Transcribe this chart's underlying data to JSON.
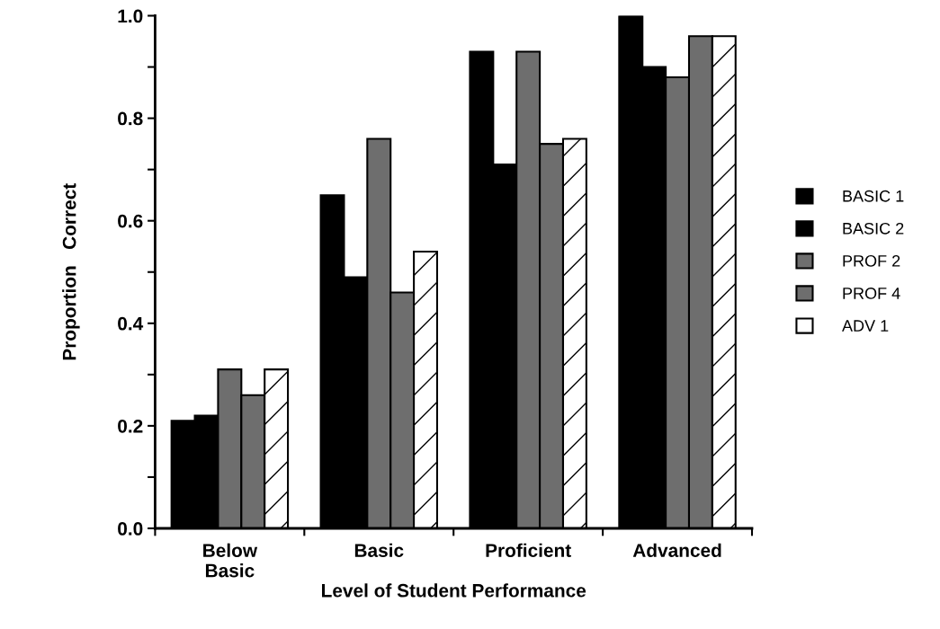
{
  "chart_data": {
    "type": "bar",
    "xlabel": "Level of Student Performance",
    "ylabel": "Proportion   Correct",
    "categories": [
      "Below\nBasic",
      "Basic",
      "Proficient",
      "Advanced"
    ],
    "series": [
      {
        "name": "BASIC 1",
        "color": "#000000",
        "values": [
          0.21,
          0.65,
          0.93,
          1.0
        ]
      },
      {
        "name": "BASIC 2",
        "color": "#000000",
        "values": [
          0.22,
          0.49,
          0.71,
          0.9
        ]
      },
      {
        "name": "PROF 2",
        "color": "#6e6e6e",
        "values": [
          0.31,
          0.76,
          0.93,
          0.88
        ]
      },
      {
        "name": "PROF 4",
        "color": "#6e6e6e",
        "values": [
          0.26,
          0.46,
          0.75,
          0.96
        ]
      },
      {
        "name": "ADV 1",
        "color": "#ffffff",
        "values": [
          0.31,
          0.54,
          0.76,
          0.96
        ]
      }
    ],
    "ylim": [
      0,
      1.0
    ],
    "yticks": [
      {
        "value": 0,
        "label": "0.0"
      },
      {
        "value": 0.1,
        "label": null
      },
      0.2,
      {
        "value": 0.3,
        "label": null
      },
      0.4,
      {
        "value": 0.5,
        "label": null
      },
      0.6,
      {
        "value": 0.7,
        "label": null
      },
      0.8,
      {
        "value": 0.9,
        "label": null
      },
      {
        "value": 1.0,
        "label": "1.0"
      }
    ],
    "grid": false,
    "legend": "right"
  }
}
